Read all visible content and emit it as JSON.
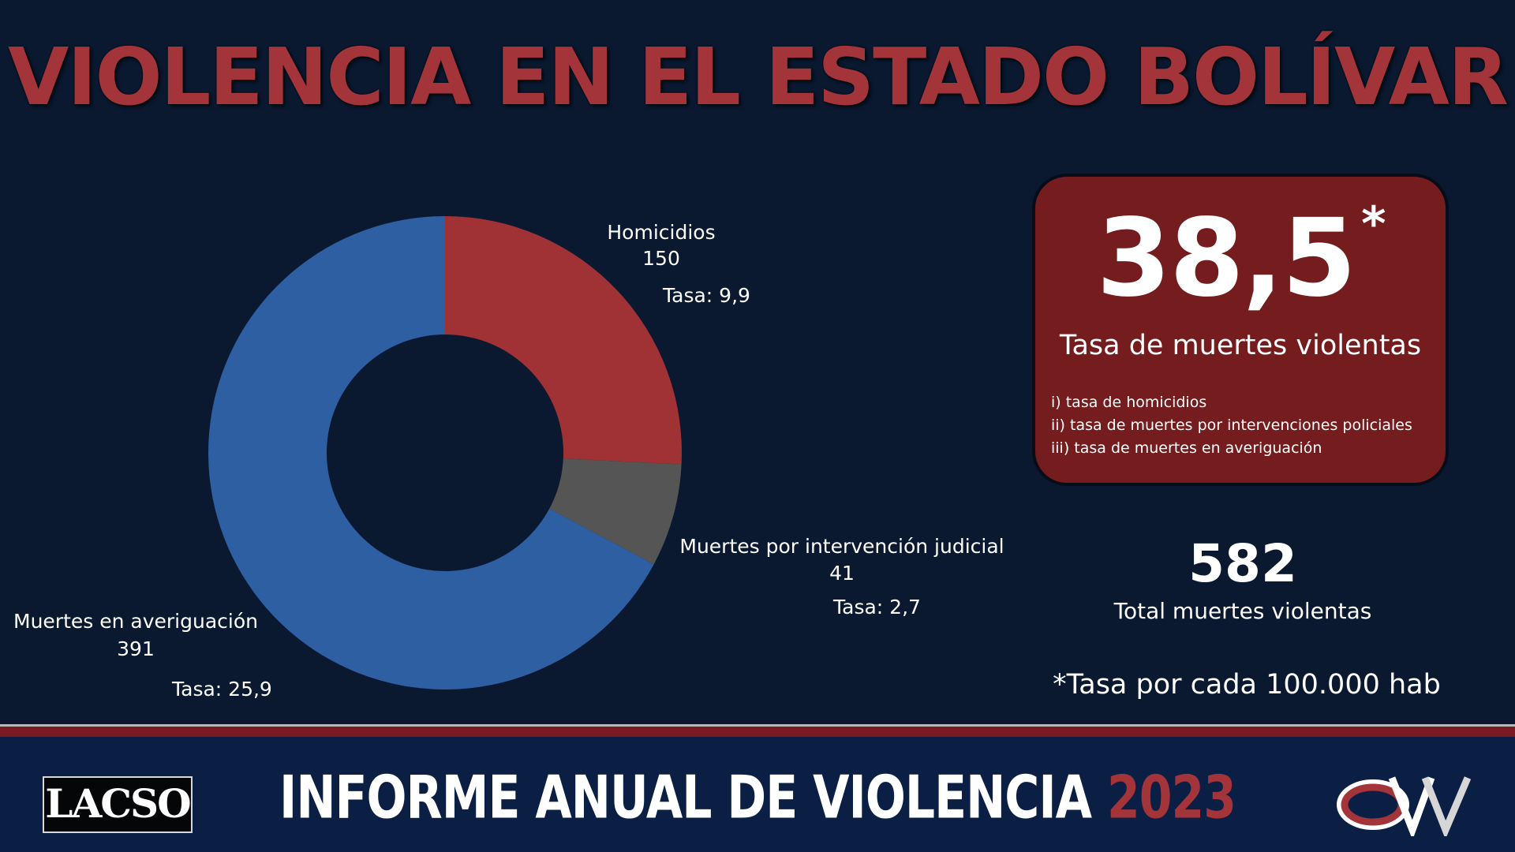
{
  "title": "VIOLENCIA EN EL ESTADO BOLÍVAR",
  "chart_data": {
    "type": "pie",
    "donut": true,
    "start_angle_deg": 0,
    "direction": "clockwise",
    "slices": [
      {
        "label": "Homicidios",
        "value": 150,
        "rate": "Tasa: 9,9",
        "color": "#a03236"
      },
      {
        "label": "Muertes por intervención judicial",
        "value": 41,
        "rate": "Tasa: 2,7",
        "color": "#555555"
      },
      {
        "label": "Muertes en averiguación",
        "value": 391,
        "rate": "Tasa: 25,9",
        "color": "#2e5fa3"
      }
    ]
  },
  "rate_box": {
    "value": "38,5",
    "asterisk": "*",
    "label": "Tasa de muertes violentas",
    "notes": [
      "i) tasa de homicidios",
      "ii) tasa de muertes por intervenciones policiales",
      "iii) tasa de muertes en averiguación"
    ],
    "background_color": "#741c1e"
  },
  "total": {
    "value": "582",
    "label": "Total muertes violentas"
  },
  "footnote": "*Tasa por cada 100.000 hab",
  "footer": {
    "lacso_logo": "LACSO",
    "report_title": "INFORME ANUAL DE VIOLENCIA",
    "report_year": "2023",
    "ovv_logo": "OVV"
  },
  "colors": {
    "background": "#0a1930",
    "accent": "#a3343a",
    "footer": "#0b1f45"
  }
}
